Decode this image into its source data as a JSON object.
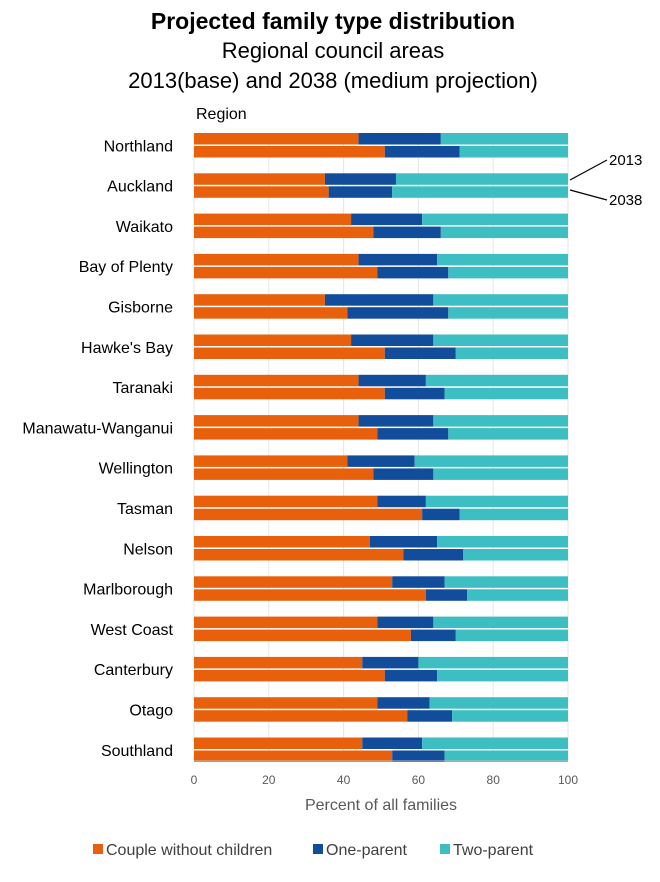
{
  "chart_data": {
    "type": "bar",
    "orientation": "horizontal",
    "stacked": true,
    "title": "Projected family type distribution",
    "subtitle_lines": [
      "Regional council areas",
      "2013(base) and 2038 (medium projection)"
    ],
    "category_axis_label": "Region",
    "xlabel": "Percent of all families",
    "xlim": [
      0,
      100
    ],
    "x_ticks": [
      "0",
      "20",
      "40",
      "60",
      "80",
      "100"
    ],
    "grid": true,
    "legend_position": "bottom",
    "bar_annotations": [
      "2013",
      "2038"
    ],
    "colors": {
      "couple": "#e8600c",
      "one_parent": "#114d9b",
      "two_parent": "#3dbec3"
    },
    "categories": [
      "Northland",
      "Auckland",
      "Waikato",
      "Bay of Plenty",
      "Gisborne",
      "Hawke's Bay",
      "Taranaki",
      "Manawatu-Wanganui",
      "Wellington",
      "Tasman",
      "Nelson",
      "Marlborough",
      "West Coast",
      "Canterbury",
      "Otago",
      "Southland"
    ],
    "series": [
      {
        "name": "Couple without children",
        "color_key": "couple",
        "values_2013": [
          44,
          35,
          42,
          44,
          35,
          42,
          44,
          44,
          41,
          49,
          47,
          53,
          49,
          45,
          49,
          45
        ],
        "values_2038": [
          51,
          36,
          48,
          49,
          41,
          51,
          51,
          49,
          48,
          61,
          56,
          62,
          58,
          51,
          57,
          53
        ]
      },
      {
        "name": "One-parent",
        "color_key": "one_parent",
        "values_2013": [
          22,
          19,
          19,
          21,
          29,
          22,
          18,
          20,
          18,
          13,
          18,
          14,
          15,
          15,
          14,
          16
        ],
        "values_2038": [
          20,
          17,
          18,
          19,
          27,
          19,
          16,
          19,
          16,
          10,
          16,
          11,
          12,
          14,
          12,
          14
        ]
      },
      {
        "name": "Two-parent",
        "color_key": "two_parent",
        "values_2013": [
          34,
          46,
          39,
          35,
          36,
          36,
          38,
          36,
          41,
          38,
          35,
          33,
          36,
          40,
          37,
          39
        ],
        "values_2038": [
          29,
          47,
          34,
          32,
          32,
          30,
          33,
          32,
          36,
          29,
          28,
          27,
          30,
          35,
          31,
          33
        ]
      }
    ]
  }
}
